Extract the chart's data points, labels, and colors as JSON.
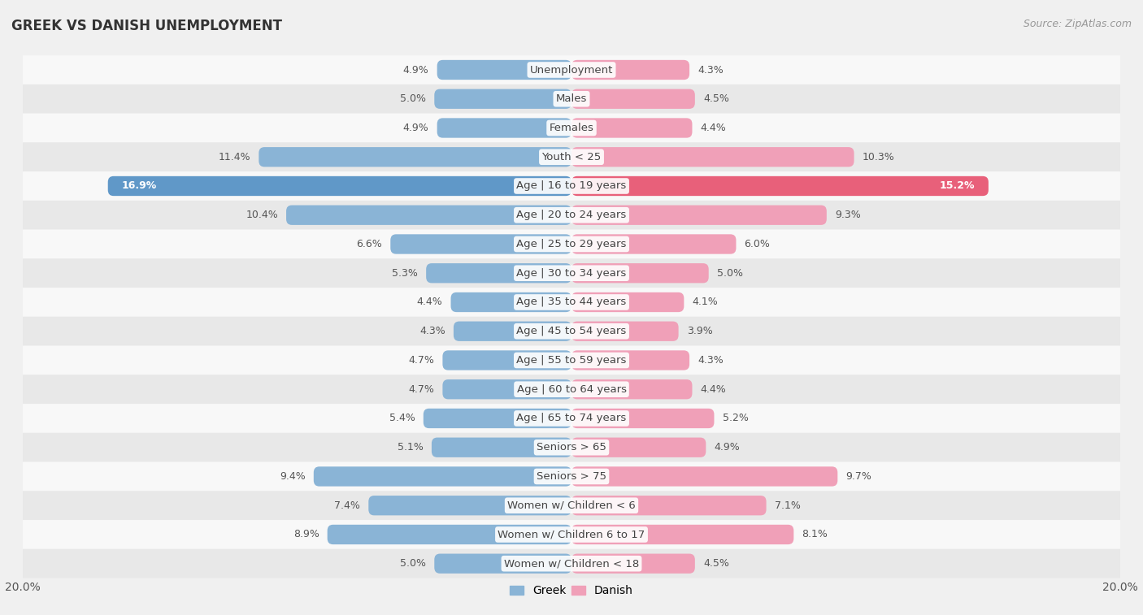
{
  "title": "GREEK VS DANISH UNEMPLOYMENT",
  "source": "Source: ZipAtlas.com",
  "categories": [
    "Unemployment",
    "Males",
    "Females",
    "Youth < 25",
    "Age | 16 to 19 years",
    "Age | 20 to 24 years",
    "Age | 25 to 29 years",
    "Age | 30 to 34 years",
    "Age | 35 to 44 years",
    "Age | 45 to 54 years",
    "Age | 55 to 59 years",
    "Age | 60 to 64 years",
    "Age | 65 to 74 years",
    "Seniors > 65",
    "Seniors > 75",
    "Women w/ Children < 6",
    "Women w/ Children 6 to 17",
    "Women w/ Children < 18"
  ],
  "greek_values": [
    4.9,
    5.0,
    4.9,
    11.4,
    16.9,
    10.4,
    6.6,
    5.3,
    4.4,
    4.3,
    4.7,
    4.7,
    5.4,
    5.1,
    9.4,
    7.4,
    8.9,
    5.0
  ],
  "danish_values": [
    4.3,
    4.5,
    4.4,
    10.3,
    15.2,
    9.3,
    6.0,
    5.0,
    4.1,
    3.9,
    4.3,
    4.4,
    5.2,
    4.9,
    9.7,
    7.1,
    8.1,
    4.5
  ],
  "greek_color": "#8ab4d6",
  "danish_color": "#f0a0b8",
  "greek_highlight_color": "#6098c8",
  "danish_highlight_color": "#e8607a",
  "highlight_row": 4,
  "axis_max": 20.0,
  "bg_color": "#f0f0f0",
  "row_bg_light": "#f8f8f8",
  "row_bg_dark": "#e8e8e8",
  "bar_height": 0.68,
  "label_fontsize": 9.5,
  "value_fontsize": 9.0,
  "title_fontsize": 12,
  "source_fontsize": 9
}
